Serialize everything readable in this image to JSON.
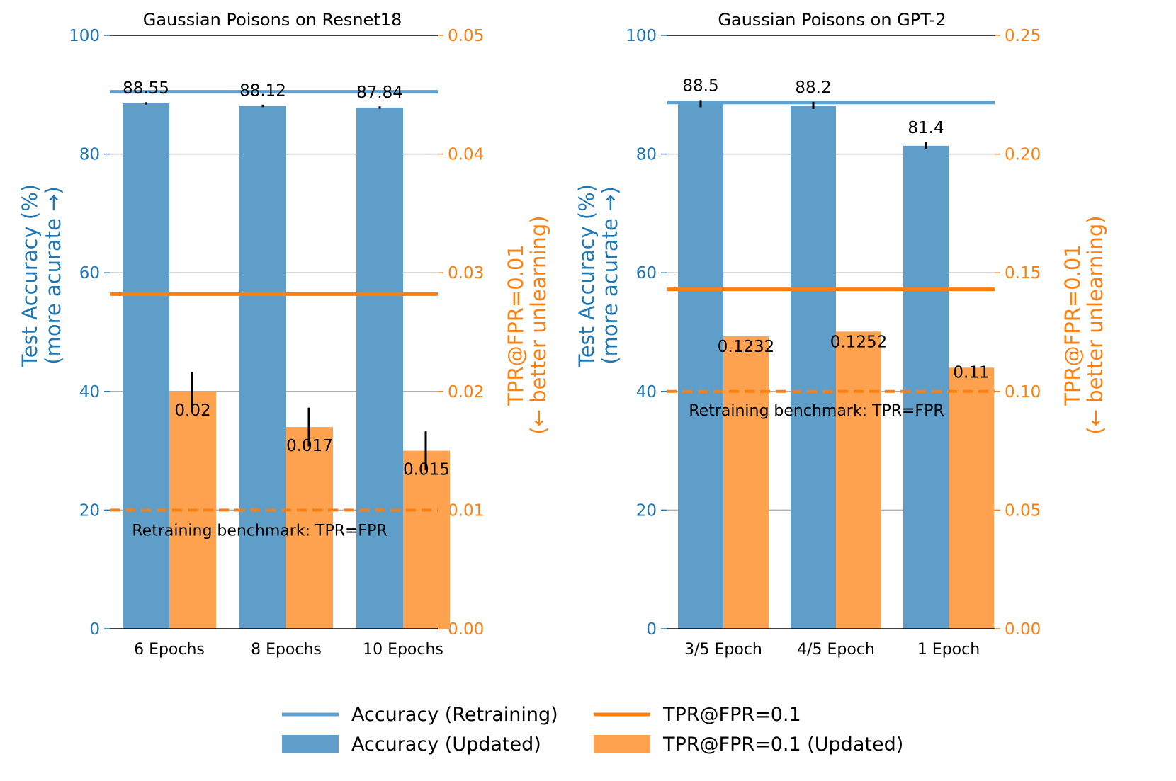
{
  "chart_data": [
    {
      "type": "bar",
      "title": "Gaussian Poisons on Resnet18",
      "categories": [
        "6 Epochs",
        "8 Epochs",
        "10 Epochs"
      ],
      "ylabel_left": [
        "Test Accuracy (%)",
        "(more acurate →)"
      ],
      "ylabel_right": [
        "TPR@FPR=0.01",
        "(← better unlearning)"
      ],
      "ylim_left": [
        0,
        100
      ],
      "ylim_right": [
        0,
        0.05
      ],
      "yticks_left": [
        "0",
        "20",
        "40",
        "60",
        "80",
        "100"
      ],
      "yticks_right": [
        "0.00",
        "0.01",
        "0.02",
        "0.03",
        "0.04",
        "0.05"
      ],
      "grid": true,
      "series": [
        {
          "name": "Accuracy (Updated)",
          "axis": "left",
          "values": [
            88.55,
            88.12,
            87.84
          ],
          "labels": [
            "88.55",
            "88.12",
            "87.84"
          ],
          "errors": [
            0.2,
            0.2,
            0.2
          ]
        },
        {
          "name": "TPR@FPR=0.1 (Updated)",
          "axis": "right",
          "values": [
            0.02,
            0.017,
            0.015
          ],
          "labels": [
            "0.02",
            "0.017",
            "0.015"
          ],
          "errors": [
            0.0008,
            0.0008,
            0.0008
          ]
        }
      ],
      "reference_lines": {
        "accuracy_retraining": 90.5,
        "tpr": 0.0282,
        "retraining_benchmark": 0.01
      },
      "annotation": "Retraining benchmark: TPR=FPR"
    },
    {
      "type": "bar",
      "title": "Gaussian Poisons on GPT-2",
      "categories": [
        "3/5 Epoch",
        "4/5 Epoch",
        "1 Epoch"
      ],
      "ylabel_left": [
        "Test Accuracy (%)",
        "(more acurate →)"
      ],
      "ylabel_right": [
        "TPR@FPR=0.01",
        "(← better unlearning)"
      ],
      "ylim_left": [
        0,
        100
      ],
      "ylim_right": [
        0,
        0.25
      ],
      "yticks_left": [
        "0",
        "20",
        "40",
        "60",
        "80",
        "100"
      ],
      "yticks_right": [
        "0.00",
        "0.05",
        "0.10",
        "0.15",
        "0.20",
        "0.25"
      ],
      "grid": true,
      "series": [
        {
          "name": "Accuracy (Updated)",
          "axis": "left",
          "values": [
            88.5,
            88.2,
            81.4
          ],
          "labels": [
            "88.5",
            "88.2",
            "81.4"
          ],
          "errors": [
            0.6,
            0.6,
            0.6
          ]
        },
        {
          "name": "TPR@FPR=0.1 (Updated)",
          "axis": "right",
          "values": [
            0.1232,
            0.1252,
            0.11
          ],
          "labels": [
            "0.1232",
            "0.1252",
            "0.11"
          ],
          "errors": [
            0,
            0,
            0
          ]
        }
      ],
      "reference_lines": {
        "accuracy_retraining": 88.7,
        "tpr": 0.143,
        "retraining_benchmark": 0.1
      },
      "annotation": "Retraining benchmark: TPR=FPR"
    }
  ],
  "legend": {
    "placement": "bottom-center",
    "items": [
      {
        "label": "Accuracy (Retraining)",
        "kind": "line",
        "color": "#5ba3d4"
      },
      {
        "label": "TPR@FPR=0.1",
        "kind": "line",
        "color": "#ff7f0e"
      },
      {
        "label": "Accuracy (Updated)",
        "kind": "patch",
        "color": "#5f9ec9"
      },
      {
        "label": "TPR@FPR=0.1 (Updated)",
        "kind": "patch",
        "color": "#ffa24f"
      }
    ]
  },
  "colors": {
    "acc_bar": "#5f9ec9",
    "acc_line": "#5ba3d4",
    "acc_axis": "#1f77b4",
    "tpr_bar": "#ffa24f",
    "tpr_line": "#ff7f0e",
    "grid": "#b0b0b0",
    "text": "#000000"
  }
}
